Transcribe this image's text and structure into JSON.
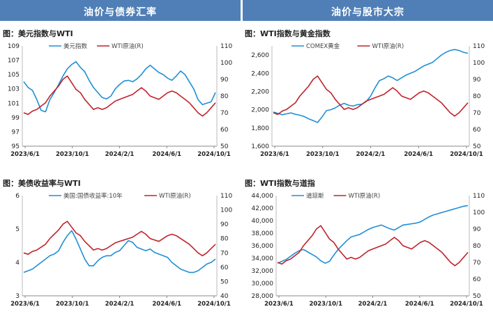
{
  "headers": {
    "left": "油价与债券汇率",
    "right": "油价与股市大宗"
  },
  "colors": {
    "blue": "#1f8fd6",
    "red": "#c0222a",
    "header_bg": "#4f7fb6"
  },
  "chart_data": [
    {
      "id": "p1",
      "type": "line",
      "title": "图：美元指数与WTI",
      "x_ticks": [
        "2023/6/1",
        "2023/10/1",
        "2024/2/1",
        "2024/6/1",
        "2024/10/1"
      ],
      "left_axis": {
        "min": 95,
        "max": 109,
        "ticks": [
          95,
          97,
          99,
          101,
          103,
          105,
          107,
          109
        ],
        "labels": [
          "95",
          "97",
          "99",
          "101",
          "103",
          "105",
          "107",
          "109"
        ]
      },
      "right_axis": {
        "min": 50,
        "max": 110,
        "ticks": [
          50,
          60,
          70,
          80,
          90,
          100,
          110
        ],
        "labels": [
          "50",
          "60",
          "70",
          "80",
          "90",
          "100",
          "110"
        ]
      },
      "series": [
        {
          "name": "美元指数",
          "axis": "left",
          "color": "#1f8fd6",
          "values": [
            104.0,
            103.2,
            102.8,
            101.5,
            100.0,
            99.8,
            101.5,
            102.5,
            103.6,
            104.8,
            105.8,
            106.4,
            106.8,
            106.0,
            105.4,
            104.2,
            103.2,
            102.5,
            101.8,
            101.6,
            102.0,
            103.0,
            103.6,
            104.1,
            104.2,
            104.0,
            104.4,
            105.0,
            105.8,
            106.3,
            105.8,
            105.3,
            105.0,
            104.5,
            104.2,
            104.8,
            105.5,
            105.0,
            104.0,
            103.0,
            101.5,
            100.8,
            101.0,
            101.2,
            102.5
          ]
        },
        {
          "name": "WTI原油(R)",
          "axis": "right",
          "color": "#c0222a",
          "values": [
            70,
            69,
            71,
            72,
            74,
            76,
            80,
            83,
            86,
            90,
            92,
            88,
            84,
            82,
            78,
            75,
            72,
            73,
            72,
            73,
            75,
            77,
            78,
            79,
            80,
            81,
            83,
            85,
            83,
            80,
            79,
            78,
            80,
            82,
            83,
            82,
            80,
            78,
            76,
            73,
            70,
            68,
            70,
            73,
            76
          ]
        }
      ]
    },
    {
      "id": "p2",
      "type": "line",
      "title": "图：WTI指数与黄金指数",
      "x_ticks": [
        "2023/6/1",
        "2023/10/1",
        "2024/2/1",
        "2024/6/1",
        "2024/10/1"
      ],
      "left_axis": {
        "min": 1600,
        "max": 2700,
        "ticks": [
          1600,
          1800,
          2000,
          2200,
          2400,
          2600
        ],
        "labels": [
          "1,600",
          "1,800",
          "2,000",
          "2,200",
          "2,400",
          "2,600"
        ]
      },
      "right_axis": {
        "min": 50,
        "max": 110,
        "ticks": [
          50,
          60,
          70,
          80,
          90,
          100,
          110
        ],
        "labels": [
          "50",
          "60",
          "70",
          "80",
          "90",
          "100",
          "110"
        ]
      },
      "series": [
        {
          "name": "COMEX黄金",
          "axis": "left",
          "color": "#1f8fd6",
          "values": [
            1975,
            1960,
            1945,
            1955,
            1965,
            1950,
            1940,
            1925,
            1900,
            1880,
            1860,
            1920,
            1990,
            2000,
            2020,
            2050,
            2070,
            2050,
            2040,
            2055,
            2060,
            2090,
            2150,
            2240,
            2320,
            2340,
            2370,
            2350,
            2320,
            2350,
            2380,
            2400,
            2420,
            2450,
            2480,
            2500,
            2520,
            2560,
            2600,
            2630,
            2650,
            2660,
            2650,
            2630,
            2620
          ]
        },
        {
          "name": "WTI原油(R)",
          "axis": "right",
          "color": "#c0222a",
          "values": [
            70,
            69,
            71,
            72,
            74,
            76,
            80,
            83,
            86,
            90,
            92,
            88,
            84,
            82,
            78,
            75,
            72,
            73,
            72,
            73,
            75,
            77,
            78,
            79,
            80,
            81,
            83,
            85,
            83,
            80,
            79,
            78,
            80,
            82,
            83,
            82,
            80,
            78,
            76,
            73,
            70,
            68,
            70,
            73,
            76
          ]
        }
      ]
    },
    {
      "id": "p3",
      "type": "line",
      "title": "图：美债收益率与WTI",
      "x_ticks": [
        "2023/6/1",
        "2023/10/1",
        "2024/2/1",
        "2024/6/1",
        "2024/10/1"
      ],
      "left_axis": {
        "min": 3,
        "max": 6,
        "ticks": [
          3,
          4,
          5,
          6
        ],
        "labels": [
          "3",
          "4",
          "5",
          "6"
        ]
      },
      "right_axis": {
        "min": 40,
        "max": 110,
        "ticks": [
          40,
          50,
          60,
          70,
          80,
          90,
          100,
          110
        ],
        "labels": [
          "40",
          "50",
          "60",
          "70",
          "80",
          "90",
          "100",
          "110"
        ]
      },
      "series": [
        {
          "name": "美国:国债收益率:10年",
          "axis": "left",
          "color": "#1f8fd6",
          "values": [
            3.7,
            3.75,
            3.8,
            3.9,
            4.0,
            4.1,
            4.2,
            4.25,
            4.35,
            4.6,
            4.8,
            4.95,
            4.7,
            4.4,
            4.1,
            3.9,
            3.9,
            4.05,
            4.15,
            4.2,
            4.2,
            4.3,
            4.35,
            4.5,
            4.65,
            4.6,
            4.45,
            4.4,
            4.35,
            4.4,
            4.3,
            4.25,
            4.2,
            4.15,
            4.0,
            3.9,
            3.8,
            3.75,
            3.7,
            3.7,
            3.75,
            3.85,
            3.95,
            4.0,
            4.1
          ]
        },
        {
          "name": "WTI原油(R)",
          "axis": "right",
          "color": "#c0222a",
          "values": [
            70,
            69,
            71,
            72,
            74,
            76,
            80,
            83,
            86,
            90,
            92,
            88,
            84,
            82,
            78,
            75,
            72,
            73,
            72,
            73,
            75,
            77,
            78,
            79,
            80,
            81,
            83,
            85,
            83,
            80,
            79,
            78,
            80,
            82,
            83,
            82,
            80,
            78,
            76,
            73,
            70,
            68,
            70,
            73,
            76
          ]
        }
      ]
    },
    {
      "id": "p4",
      "type": "line",
      "title": "图：WTI指数与道指",
      "x_ticks": [
        "2023/6/1",
        "2023/10/1",
        "2024/2/1",
        "2024/6/1",
        "2024/10/1"
      ],
      "left_axis": {
        "min": 28000,
        "max": 44000,
        "ticks": [
          28000,
          30000,
          32000,
          34000,
          36000,
          38000,
          40000,
          42000,
          44000
        ],
        "labels": [
          "28,000",
          "30,000",
          "32,000",
          "34,000",
          "36,000",
          "38,000",
          "40,000",
          "42,000",
          "44,000"
        ]
      },
      "right_axis": {
        "min": 50,
        "max": 110,
        "ticks": [
          50,
          60,
          70,
          80,
          90,
          100,
          110
        ],
        "labels": [
          "50",
          "60",
          "70",
          "80",
          "90",
          "100",
          "110"
        ]
      },
      "series": [
        {
          "name": "道琼斯",
          "axis": "left",
          "color": "#1f8fd6",
          "values": [
            33200,
            33500,
            33800,
            34300,
            34800,
            35200,
            35400,
            35000,
            34600,
            34200,
            33600,
            33200,
            33500,
            34500,
            35400,
            36100,
            36800,
            37400,
            37600,
            37800,
            38200,
            38600,
            38900,
            39100,
            39300,
            39000,
            38700,
            38500,
            38900,
            39300,
            39400,
            39500,
            39600,
            39800,
            40200,
            40600,
            40900,
            41100,
            41300,
            41500,
            41700,
            41900,
            42100,
            42300,
            42400
          ]
        },
        {
          "name": "WTI原油(R)",
          "axis": "right",
          "color": "#c0222a",
          "values": [
            70,
            69,
            71,
            72,
            74,
            76,
            80,
            83,
            86,
            90,
            92,
            88,
            84,
            82,
            78,
            75,
            72,
            73,
            72,
            73,
            75,
            77,
            78,
            79,
            80,
            81,
            83,
            85,
            83,
            80,
            79,
            78,
            80,
            82,
            83,
            82,
            80,
            78,
            76,
            73,
            70,
            68,
            70,
            73,
            76
          ]
        }
      ]
    }
  ]
}
